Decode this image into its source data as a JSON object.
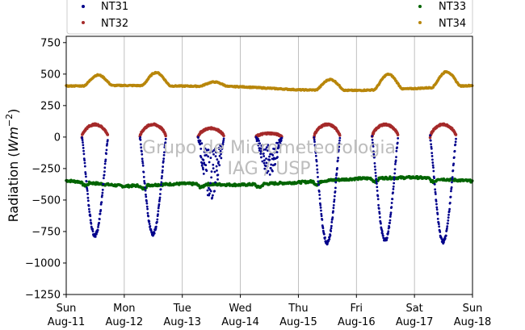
{
  "chart_data": {
    "type": "scatter",
    "title": "",
    "xlabel": "",
    "ylabel": "Radiation",
    "ylabel_unit": "Wm",
    "ylabel_unit_exp": "−2",
    "ylim": [
      -1250,
      800
    ],
    "yticks": [
      -1250,
      -1000,
      -750,
      -500,
      -250,
      0,
      250,
      500,
      750
    ],
    "ytick_labels": [
      "−1250",
      "−1000",
      "−750",
      "−500",
      "−250",
      "0",
      "250",
      "500",
      "750"
    ],
    "xlim": [
      0,
      7
    ],
    "xticks": [
      0,
      1,
      2,
      3,
      4,
      5,
      6,
      7
    ],
    "xtick_labels_day": [
      "Sun",
      "Mon",
      "Tue",
      "Wed",
      "Thu",
      "Fri",
      "Sat",
      "Sun"
    ],
    "xtick_labels_date": [
      "Aug-11",
      "Aug-12",
      "Aug-13",
      "Aug-14",
      "Aug-15",
      "Aug-16",
      "Aug-17",
      "Aug-18"
    ],
    "x_grid": true,
    "y_grid": false,
    "legend_position": "top",
    "watermark": [
      "Grupo de Micrometeorologia",
      "IAG / USP"
    ],
    "series": [
      {
        "name": "NT31",
        "color": "#00008b",
        "daily_min": [
          -780,
          -770,
          -500,
          -300,
          -840,
          -820,
          -830
        ],
        "note_shape": "daytime trough, zero at night"
      },
      {
        "name": "NT32",
        "color": "#a52a2a",
        "daily_peak": [
          100,
          100,
          70,
          30,
          100,
          100,
          100
        ]
      },
      {
        "name": "NT33",
        "color": "#006400",
        "baseline": [
          -345,
          -390,
          -370,
          -380,
          -360,
          -330,
          -320,
          -350
        ]
      },
      {
        "name": "NT34",
        "color": "#b8860b",
        "baseline": [
          405,
          410,
          405,
          400,
          375,
          370,
          385,
          410
        ],
        "daily_peak": [
          490,
          515,
          440,
          400,
          460,
          490,
          505
        ]
      }
    ]
  }
}
